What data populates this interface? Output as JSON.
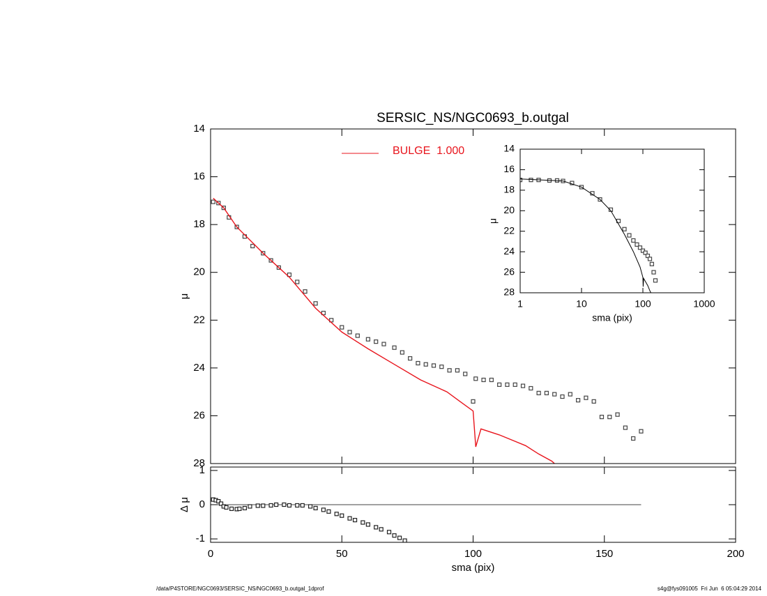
{
  "chart_data": [
    {
      "type": "scatter",
      "title": "SERSIC_NS/NGC0693_b.outgal",
      "y_label": "μ",
      "xlim": [
        0,
        200
      ],
      "ylim": [
        14,
        28
      ],
      "yticks": [
        14,
        16,
        18,
        20,
        22,
        24,
        26,
        28
      ],
      "invert_y": true,
      "legend": "top",
      "series": [
        {
          "style": "markers",
          "color": "#444444",
          "x": [
            1,
            3,
            5,
            7,
            10,
            13,
            16,
            20,
            23,
            26,
            30,
            33,
            36,
            40,
            43,
            46,
            50,
            53,
            56,
            60,
            63,
            66,
            70,
            73,
            76,
            79,
            82,
            85,
            88,
            91,
            94,
            97,
            100,
            101,
            104,
            107,
            110,
            113,
            116,
            119,
            122,
            125,
            128,
            131,
            134,
            137,
            140,
            143,
            146,
            149,
            152,
            155,
            158,
            161,
            164
          ],
          "values": [
            17.05,
            17.1,
            17.3,
            17.7,
            18.1,
            18.5,
            18.9,
            19.2,
            19.5,
            19.8,
            20.1,
            20.4,
            20.8,
            21.3,
            21.7,
            22.0,
            22.3,
            22.5,
            22.65,
            22.8,
            22.9,
            23.0,
            23.15,
            23.35,
            23.6,
            23.8,
            23.85,
            23.9,
            23.95,
            24.1,
            24.1,
            24.25,
            25.4,
            24.45,
            24.5,
            24.5,
            24.7,
            24.7,
            24.7,
            24.75,
            24.85,
            25.05,
            25.05,
            25.1,
            25.2,
            25.1,
            25.35,
            25.25,
            25.4,
            26.05,
            26.05,
            25.95,
            26.5,
            26.95,
            26.65
          ]
        },
        {
          "style": "line",
          "name": "BULGE  1.000",
          "color": "#e8141c",
          "x": [
            1,
            5,
            10,
            20,
            30,
            40,
            50,
            60,
            70,
            80,
            90,
            95,
            100,
            101,
            103,
            110,
            120,
            125,
            130,
            131
          ],
          "values": [
            16.9,
            17.3,
            18.1,
            19.2,
            20.2,
            21.5,
            22.5,
            23.2,
            23.85,
            24.5,
            25.0,
            25.4,
            25.8,
            27.3,
            26.55,
            26.8,
            27.25,
            27.6,
            27.9,
            28.0
          ]
        }
      ]
    },
    {
      "type": "scatter",
      "x_label": "sma (pix)",
      "y_label": "Δ μ",
      "xlim": [
        0,
        200
      ],
      "xticks": [
        0,
        50,
        100,
        150,
        200
      ],
      "ylim": [
        -1.1,
        1.1
      ],
      "yticks": [
        1,
        0,
        -1
      ],
      "zero_line": {
        "x": [
          0,
          164
        ],
        "y": 0
      },
      "series": [
        {
          "style": "markers",
          "color": "#222222",
          "x": [
            1,
            2,
            3,
            4,
            5,
            6,
            8,
            10,
            11,
            13,
            15,
            18,
            20,
            23,
            25,
            28,
            30,
            33,
            35,
            38,
            40,
            43,
            45,
            48,
            50,
            53,
            55,
            58,
            60,
            63,
            65,
            68,
            70,
            72,
            74
          ],
          "values": [
            0.15,
            0.13,
            0.1,
            0.03,
            -0.05,
            -0.08,
            -0.12,
            -0.13,
            -0.12,
            -0.1,
            -0.05,
            -0.03,
            -0.03,
            -0.02,
            0.0,
            0.0,
            -0.02,
            -0.02,
            -0.02,
            -0.05,
            -0.1,
            -0.15,
            -0.2,
            -0.27,
            -0.32,
            -0.4,
            -0.45,
            -0.52,
            -0.58,
            -0.66,
            -0.72,
            -0.8,
            -0.9,
            -0.97,
            -1.05
          ]
        }
      ]
    },
    {
      "type": "scatter",
      "x_label": "sma (pix)",
      "y_label": "μ",
      "xlog": true,
      "xlim": [
        1,
        1000
      ],
      "xticks": [
        1,
        10,
        100,
        1000
      ],
      "ylim": [
        14,
        28
      ],
      "yticks": [
        14,
        16,
        18,
        20,
        22,
        24,
        26,
        28
      ],
      "invert_y": true,
      "series": [
        {
          "style": "markers",
          "color": "#444444",
          "x": [
            1,
            1.5,
            2,
            3,
            4,
            5,
            7,
            10,
            15,
            20,
            30,
            40,
            50,
            60,
            70,
            80,
            90,
            100,
            110,
            120,
            130,
            140,
            150,
            160
          ],
          "values": [
            17.0,
            17.0,
            17.0,
            17.05,
            17.05,
            17.1,
            17.3,
            17.7,
            18.3,
            18.9,
            19.9,
            21.0,
            21.8,
            22.4,
            22.9,
            23.3,
            23.6,
            23.9,
            24.1,
            24.4,
            24.7,
            25.2,
            26.0,
            26.8
          ]
        },
        {
          "style": "line",
          "color": "#000000",
          "x": [
            1,
            5,
            10,
            20,
            30,
            50,
            70,
            90,
            100,
            101,
            103,
            120,
            130,
            135
          ],
          "values": [
            16.9,
            17.1,
            17.7,
            18.9,
            20.0,
            22.3,
            24.0,
            25.5,
            26.5,
            27.4,
            26.6,
            27.3,
            27.8,
            28.0
          ]
        }
      ]
    }
  ],
  "footer": {
    "left": "/data/P4STORE/NGC0693/SERSIC_NS/NGC0693_b.outgal_1dprof",
    "right": "s4g@fys091005  Fri Jun  6 05:04:29 2014"
  }
}
